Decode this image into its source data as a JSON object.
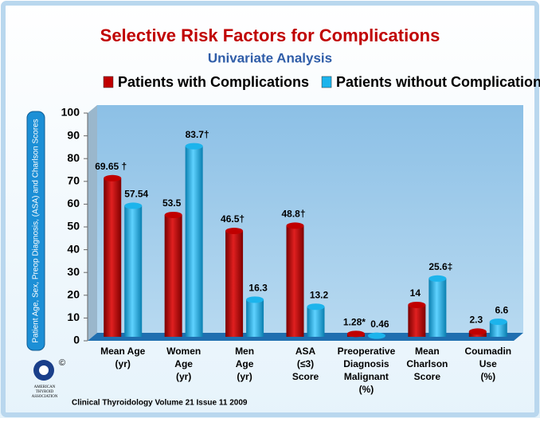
{
  "chart_data": {
    "type": "bar",
    "title": "Selective Risk Factors for Complications",
    "subtitle": "Univariate Analysis",
    "y_axis_label": "Patient Age, Sex, Preop Diagnosis, (ASA) and Charlson Scores",
    "categories": [
      [
        "Mean Age",
        "(yr)"
      ],
      [
        "Women",
        "Age",
        "(yr)"
      ],
      [
        "Men",
        "Age",
        "(yr)"
      ],
      [
        "ASA",
        "(≤3)",
        "Score"
      ],
      [
        "Preoperative",
        "Diagnosis",
        "Malignant",
        "(%)"
      ],
      [
        "Mean",
        "Charlson",
        "Score"
      ],
      [
        "Coumadin",
        "Use",
        "(%)"
      ]
    ],
    "series": [
      {
        "name": "Patients with Complications",
        "color": "#c00000",
        "values": [
          69.65,
          53.5,
          46.5,
          48.8,
          1.28,
          14,
          2.3
        ],
        "value_labels": [
          "69.65 †",
          "53.5",
          "46.5†",
          "48.8†",
          "1.28*",
          "14",
          "2.3"
        ]
      },
      {
        "name": "Patients without Complications",
        "color": "#1cb4ec",
        "values": [
          57.54,
          83.7,
          16.3,
          13.2,
          0.46,
          25.6,
          6.6
        ],
        "value_labels": [
          "57.54",
          "83.7†",
          "16.3",
          "13.2",
          "0.46",
          "25.6‡",
          "6.6"
        ]
      }
    ],
    "ylim": [
      0,
      100
    ],
    "yticks": [
      0,
      10,
      20,
      30,
      40,
      50,
      60,
      70,
      80,
      90,
      100
    ],
    "grid": false,
    "legend": "top",
    "footer": "Clinical Thyroidology Volume 21 Issue 11 2009",
    "logo_text": [
      "AMERICAN",
      "THYROID",
      "ASSOCIATION"
    ],
    "logo_mark": "©"
  }
}
